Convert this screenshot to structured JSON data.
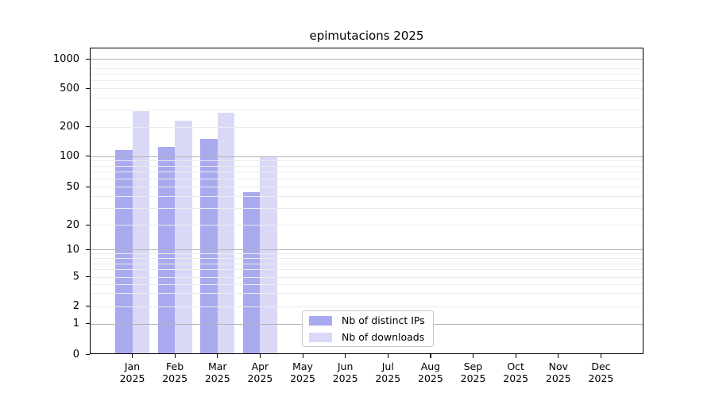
{
  "title": "epimutacions 2025",
  "chart_data": {
    "type": "bar",
    "title": "epimutacions 2025",
    "categories": [
      "Jan",
      "Feb",
      "Mar",
      "Apr",
      "May",
      "Jun",
      "Jul",
      "Aug",
      "Sep",
      "Oct",
      "Nov",
      "Dec"
    ],
    "year": "2025",
    "series": [
      {
        "name": "Nb of distinct IPs",
        "color": "#a9a9f0",
        "values": [
          115,
          125,
          150,
          44,
          null,
          null,
          null,
          null,
          null,
          null,
          null,
          null
        ]
      },
      {
        "name": "Nb of downloads",
        "color": "#d9d9f7",
        "values": [
          290,
          230,
          280,
          97,
          null,
          null,
          null,
          null,
          null,
          null,
          null,
          null
        ]
      }
    ],
    "y_ticks": [
      0,
      1,
      2,
      5,
      10,
      20,
      50,
      100,
      200,
      500,
      1000
    ],
    "ylabel": "",
    "xlabel": "",
    "scale": "log-like with zero baseline",
    "grid": "on",
    "legend_position": "bottom-center-inside"
  },
  "legend": {
    "items": [
      {
        "label": "Nb of distinct IPs",
        "color": "#a9a9f0"
      },
      {
        "label": "Nb of downloads",
        "color": "#d9d9f7"
      }
    ]
  }
}
